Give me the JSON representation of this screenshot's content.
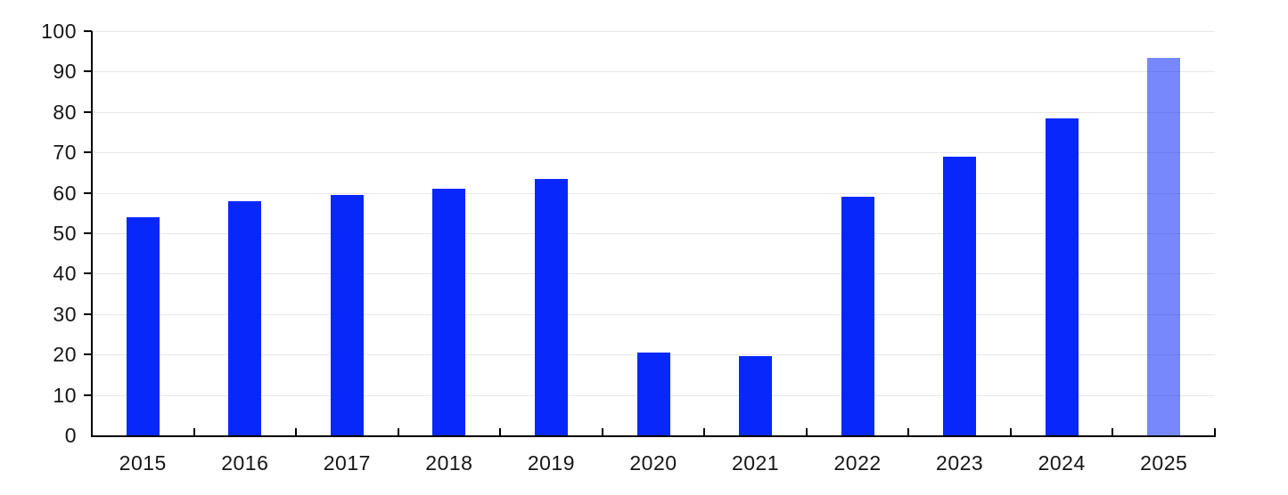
{
  "chart_data": {
    "type": "bar",
    "title": "",
    "xlabel": "",
    "ylabel": "",
    "categories": [
      "2015",
      "2016",
      "2017",
      "2018",
      "2019",
      "2020",
      "2021",
      "2022",
      "2023",
      "2024",
      "2025"
    ],
    "values": [
      54,
      58,
      59.5,
      61,
      63.5,
      20.5,
      19.5,
      59,
      69,
      78.5,
      93.5
    ],
    "highlight_index": 10,
    "ylim": [
      0,
      100
    ],
    "ytick_step": 10,
    "ytick_labels": [
      "0",
      "10",
      "20",
      "30",
      "40",
      "50",
      "60",
      "70",
      "80",
      "90",
      "100"
    ],
    "grid": "horizontal",
    "legend": "none",
    "colors": {
      "bar": "#0828fb",
      "highlight_bar": "rgba(8, 38, 251, 0.55)",
      "gridline": "#e7e7e7",
      "axis": "#000000",
      "label": "#161616"
    }
  }
}
